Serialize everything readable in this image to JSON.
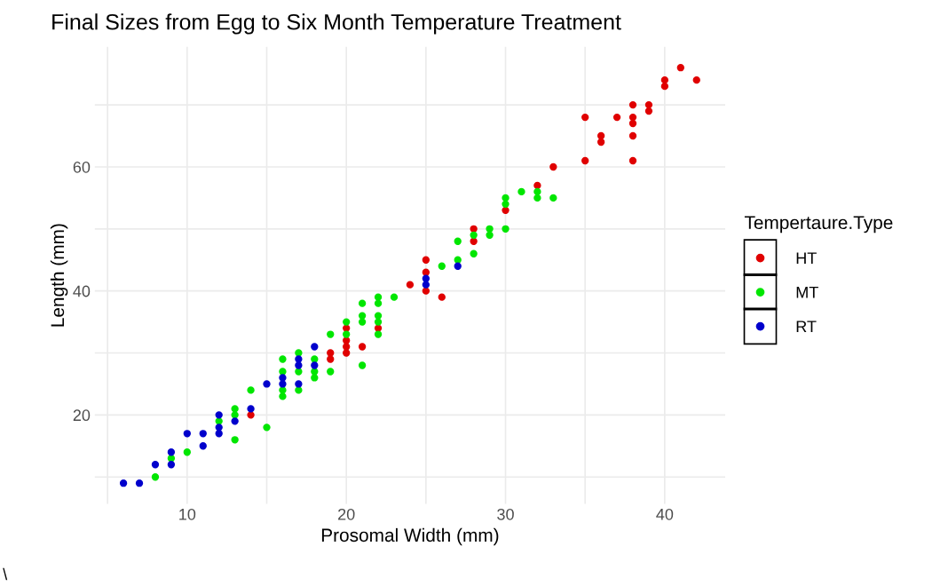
{
  "chart_data": {
    "type": "scatter",
    "title": "Final Sizes from Egg to Six Month Temperature Treatment",
    "xlabel": "Prosomal Width (mm)",
    "ylabel": "Length (mm)",
    "legend_title": "Tempertaure.Type",
    "legend": "right",
    "grid": true,
    "marker": "circle",
    "xlim": [
      4.2,
      43.8
    ],
    "ylim": [
      5.65,
      79.35
    ],
    "xticks": [
      {
        "value": 5,
        "label": null
      },
      10,
      {
        "value": 15,
        "label": null
      },
      20,
      {
        "value": 25,
        "label": null
      },
      30,
      {
        "value": 35,
        "label": null
      },
      40
    ],
    "yticks": [
      {
        "value": 10,
        "label": null
      },
      20,
      {
        "value": 30,
        "label": null
      },
      40,
      {
        "value": 50,
        "label": null
      },
      60,
      {
        "value": 70,
        "label": null
      }
    ],
    "annotations": [
      "\\"
    ],
    "series": [
      {
        "name": "HT",
        "color": "#e00000",
        "x": [
          14,
          19,
          19,
          20,
          20,
          20,
          20,
          21,
          22,
          24,
          25,
          25,
          25,
          26,
          28,
          28,
          30,
          32,
          33,
          35,
          35,
          36,
          36,
          37,
          38,
          38,
          38,
          38,
          38,
          39,
          39,
          40,
          40,
          41,
          42
        ],
        "values": [
          20,
          30,
          29,
          34,
          32,
          31,
          30,
          31,
          34,
          41,
          45,
          43,
          40,
          39,
          50,
          48,
          53,
          57,
          60,
          68,
          61,
          65,
          64,
          68,
          70,
          68,
          67,
          65,
          61,
          70,
          69,
          74,
          73,
          76,
          74
        ]
      },
      {
        "name": "MT",
        "color": "#00e600",
        "x": [
          8,
          9,
          10,
          12,
          13,
          13,
          13,
          14,
          15,
          16,
          16,
          16,
          16,
          17,
          17,
          17,
          18,
          18,
          18,
          19,
          19,
          20,
          20,
          21,
          21,
          21,
          21,
          22,
          22,
          22,
          22,
          22,
          23,
          26,
          27,
          27,
          28,
          28,
          29,
          29,
          30,
          30,
          30,
          31,
          32,
          32,
          33
        ],
        "values": [
          10,
          13,
          14,
          19,
          21,
          20,
          16,
          24,
          18,
          29,
          27,
          24,
          23,
          30,
          27,
          24,
          29,
          27,
          26,
          33,
          27,
          35,
          33,
          38,
          36,
          35,
          28,
          39,
          38,
          36,
          35,
          33,
          39,
          44,
          48,
          45,
          49,
          46,
          50,
          49,
          55,
          54,
          50,
          56,
          56,
          55,
          55
        ]
      },
      {
        "name": "RT",
        "color": "#0000cc",
        "x": [
          6,
          7,
          8,
          9,
          9,
          10,
          11,
          11,
          12,
          12,
          12,
          13,
          14,
          15,
          16,
          16,
          17,
          17,
          17,
          18,
          18,
          25,
          25,
          27
        ],
        "values": [
          9,
          9,
          12,
          14,
          12,
          17,
          17,
          15,
          20,
          18,
          17,
          19,
          21,
          25,
          26,
          25,
          29,
          28,
          25,
          31,
          28,
          42,
          41,
          44
        ]
      }
    ]
  }
}
